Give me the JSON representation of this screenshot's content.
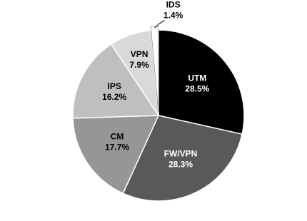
{
  "chart_data": {
    "type": "pie",
    "categories": [
      "UTM",
      "FW/VPN",
      "CM",
      "IPS",
      "VPN",
      "IDS"
    ],
    "values": [
      28.5,
      28.3,
      17.7,
      16.2,
      7.9,
      1.4
    ],
    "value_labels": [
      "28.5%",
      "28.3%",
      "17.7%",
      "16.2%",
      "7.9%",
      "1.4%"
    ],
    "colors": [
      "#000000",
      "#595959",
      "#969696",
      "#bfbfbf",
      "#d9d9d9",
      "#ffffff"
    ]
  }
}
